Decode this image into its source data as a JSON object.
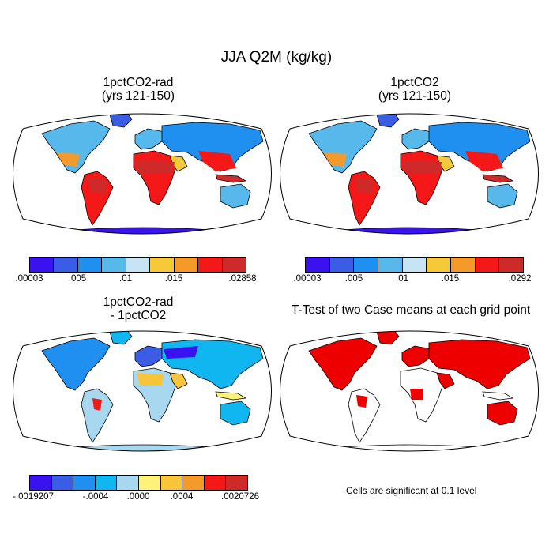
{
  "title": "JJA Q2M (kg/kg)",
  "panels": [
    {
      "title_line1": "1pctCO2-rad",
      "title_line2": "(yrs 121-150)",
      "colorbar": {
        "colors": [
          "#3a12f0",
          "#3b5de6",
          "#1f8ff0",
          "#57b8ec",
          "#c6e4f4",
          "#f6c93a",
          "#f49a2a",
          "#f51818",
          "#cf2a2a"
        ],
        "tick_labels": [
          ".00003",
          ".005",
          ".01",
          ".015",
          ".02858"
        ]
      }
    },
    {
      "title_line1": "1pctCO2",
      "title_line2": "(yrs 121-150)",
      "colorbar": {
        "colors": [
          "#3a12f0",
          "#3b5de6",
          "#1f8ff0",
          "#57b8ec",
          "#c6e4f4",
          "#f6c93a",
          "#f49a2a",
          "#f51818",
          "#cf2a2a"
        ],
        "tick_labels": [
          ".00003",
          ".005",
          ".01",
          ".015",
          ".0292"
        ]
      }
    },
    {
      "title_line1": "1pctCO2-rad",
      "title_line2": "- 1pctCO2",
      "colorbar": {
        "colors": [
          "#3a12f0",
          "#3b5de6",
          "#1f8ff0",
          "#0fb6f0",
          "#a8d8f0",
          "#fff27a",
          "#f7c43a",
          "#f49a2a",
          "#f51818",
          "#cf2a2a"
        ],
        "tick_labels": [
          "-.0019207",
          "-.0004",
          ".0000",
          ".0004",
          ".0020726"
        ]
      }
    },
    {
      "title_line1": "T-Test of two Case means at each grid point",
      "significance_color": "#ee0000"
    }
  ],
  "note": "Cells are significant at 0.1 level"
}
